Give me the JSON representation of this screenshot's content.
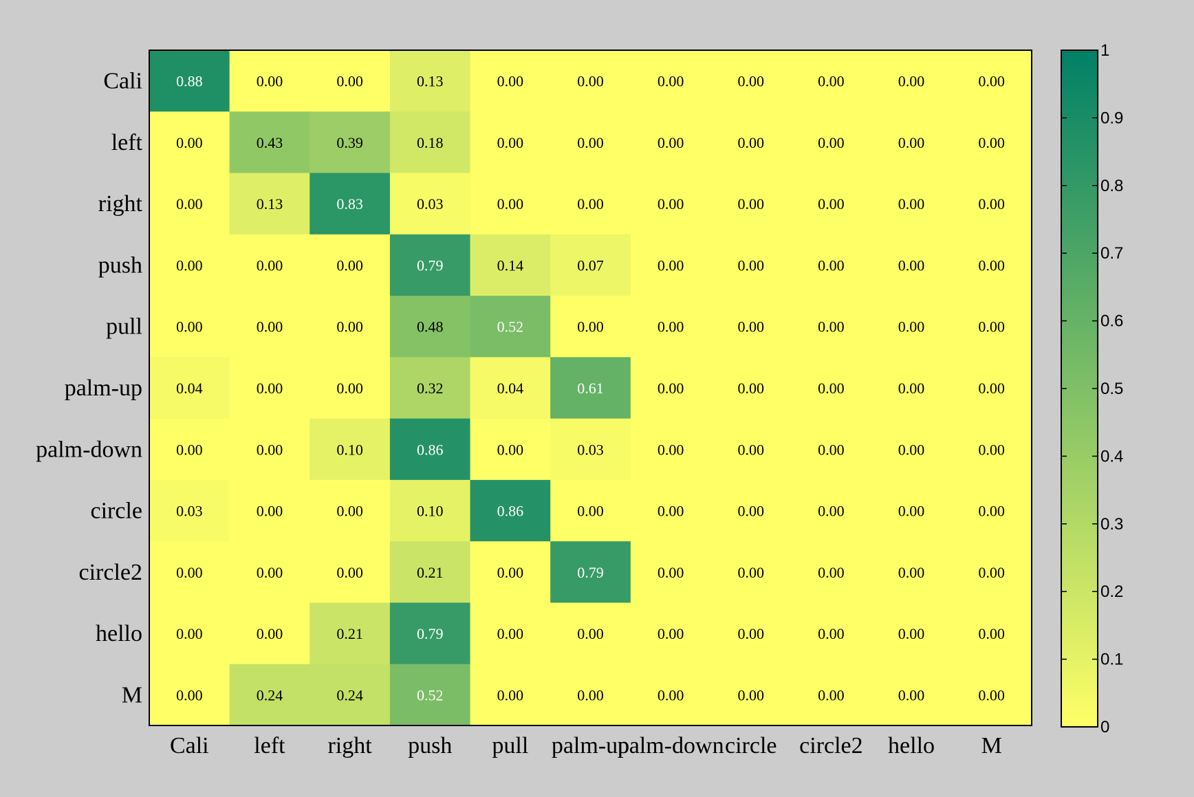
{
  "chart_data": {
    "type": "heatmap",
    "title": "",
    "xlabel": "",
    "ylabel": "",
    "row_labels": [
      "Cali",
      "left",
      "right",
      "push",
      "pull",
      "palm-up",
      "palm-down",
      "circle",
      "circle2",
      "hello",
      "M"
    ],
    "col_labels": [
      "Cali",
      "left",
      "right",
      "push",
      "pull",
      "palm-up",
      "palm-down",
      "circle",
      "circle2",
      "hello",
      "M"
    ],
    "values": [
      [
        0.88,
        0.0,
        0.0,
        0.13,
        0.0,
        0.0,
        0.0,
        0.0,
        0.0,
        0.0,
        0.0
      ],
      [
        0.0,
        0.43,
        0.39,
        0.18,
        0.0,
        0.0,
        0.0,
        0.0,
        0.0,
        0.0,
        0.0
      ],
      [
        0.0,
        0.13,
        0.83,
        0.03,
        0.0,
        0.0,
        0.0,
        0.0,
        0.0,
        0.0,
        0.0
      ],
      [
        0.0,
        0.0,
        0.0,
        0.79,
        0.14,
        0.07,
        0.0,
        0.0,
        0.0,
        0.0,
        0.0
      ],
      [
        0.0,
        0.0,
        0.0,
        0.48,
        0.52,
        0.0,
        0.0,
        0.0,
        0.0,
        0.0,
        0.0
      ],
      [
        0.04,
        0.0,
        0.0,
        0.32,
        0.04,
        0.61,
        0.0,
        0.0,
        0.0,
        0.0,
        0.0
      ],
      [
        0.0,
        0.0,
        0.1,
        0.86,
        0.0,
        0.03,
        0.0,
        0.0,
        0.0,
        0.0,
        0.0
      ],
      [
        0.03,
        0.0,
        0.0,
        0.1,
        0.86,
        0.0,
        0.0,
        0.0,
        0.0,
        0.0,
        0.0
      ],
      [
        0.0,
        0.0,
        0.0,
        0.21,
        0.0,
        0.79,
        0.0,
        0.0,
        0.0,
        0.0,
        0.0
      ],
      [
        0.0,
        0.0,
        0.21,
        0.79,
        0.0,
        0.0,
        0.0,
        0.0,
        0.0,
        0.0,
        0.0
      ],
      [
        0.0,
        0.24,
        0.24,
        0.52,
        0.0,
        0.0,
        0.0,
        0.0,
        0.0,
        0.0,
        0.0
      ]
    ],
    "value_format": "0.00",
    "colormap": {
      "name": "summer_r",
      "low_color": "#ffff66",
      "high_color": "#008066"
    },
    "color_range": [
      0,
      1
    ],
    "colorbar": {
      "ticks": [
        0,
        0.1,
        0.2,
        0.3,
        0.4,
        0.5,
        0.6,
        0.7,
        0.8,
        0.9,
        1
      ],
      "tick_labels": [
        "0",
        "0.1",
        "0.2",
        "0.3",
        "0.4",
        "0.5",
        "0.6",
        "0.7",
        "0.8",
        "0.9",
        "1"
      ],
      "placement": "right"
    },
    "text_color_dark": "#000000",
    "text_color_light": "#ffffff",
    "background_color": "#cccccc"
  }
}
